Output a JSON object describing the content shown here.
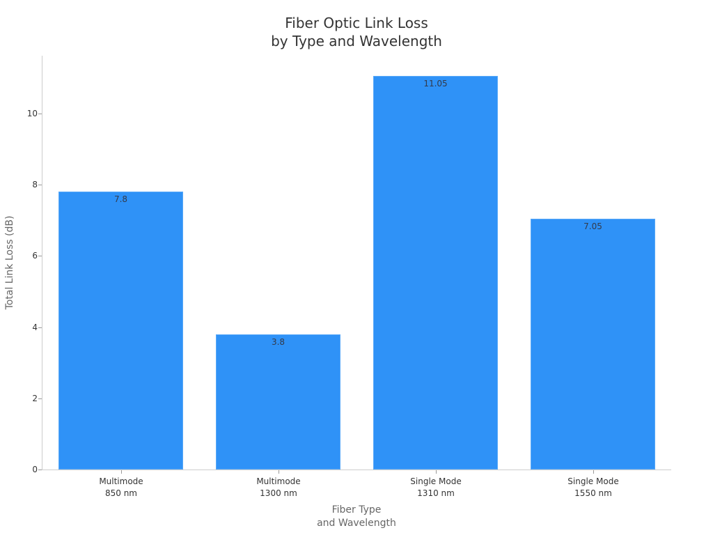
{
  "chart_data": {
    "type": "bar",
    "title": "Fiber Optic Link Loss\nby Type and Wavelength",
    "title_lines": [
      "Fiber Optic Link Loss",
      "by Type and Wavelength"
    ],
    "categories": [
      "Multimode 850 nm",
      "Multimode 1300 nm",
      "Single Mode 1310 nm",
      "Single Mode 1550 nm"
    ],
    "category_lines": [
      [
        "Multimode",
        "850 nm"
      ],
      [
        "Multimode",
        "1300 nm"
      ],
      [
        "Single Mode",
        "1310 nm"
      ],
      [
        "Single Mode",
        "1550 nm"
      ]
    ],
    "values": [
      7.8,
      3.8,
      11.05,
      7.05
    ],
    "value_labels": [
      "7.8",
      "3.8",
      "11.05",
      "7.05"
    ],
    "xlabel": "Fiber Type\nand Wavelength",
    "xlabel_lines": [
      "Fiber Type",
      "and Wavelength"
    ],
    "ylabel": "Total Link Loss (dB)",
    "ylim": [
      0,
      11.6
    ],
    "yticks": [
      0,
      2,
      4,
      6,
      8,
      10
    ],
    "ytick_labels": [
      "0",
      "2",
      "4",
      "6",
      "8",
      "10"
    ],
    "grid": false,
    "legend": null,
    "bar_color": "#2f92f7"
  }
}
